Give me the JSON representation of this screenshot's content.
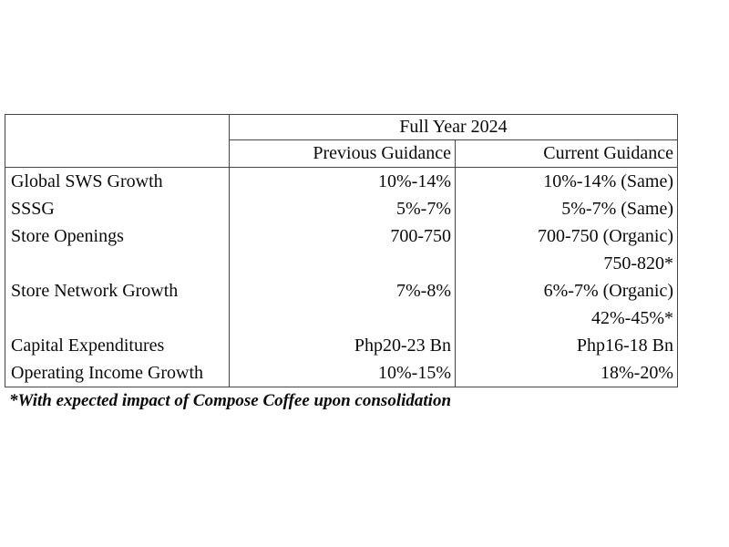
{
  "table": {
    "header": {
      "title": "Full Year 2024",
      "col_previous": "Previous Guidance",
      "col_current": "Current Guidance"
    },
    "rows": [
      {
        "label": "Global SWS Growth",
        "previous": "10%-14%",
        "current": "10%-14% (Same)"
      },
      {
        "label": "SSSG",
        "previous": "5%-7%",
        "current": "5%-7% (Same)"
      },
      {
        "label": "Store Openings",
        "previous": "700-750",
        "current": "700-750 (Organic)"
      },
      {
        "label": "",
        "previous": "",
        "current": "750-820*"
      },
      {
        "label": "Store Network Growth",
        "previous": "7%-8%",
        "current": "6%-7% (Organic)"
      },
      {
        "label": "",
        "previous": "",
        "current": "42%-45%*"
      },
      {
        "label": "Capital Expenditures",
        "previous": "Php20-23 Bn",
        "current": "Php16-18 Bn"
      },
      {
        "label": "Operating Income Growth",
        "previous": "10%-15%",
        "current": "18%-20%"
      }
    ],
    "footnote": "*With expected impact of Compose Coffee upon consolidation"
  },
  "colors": {
    "border": "#454545",
    "text": "#0a0a0a",
    "background": "#ffffff"
  }
}
